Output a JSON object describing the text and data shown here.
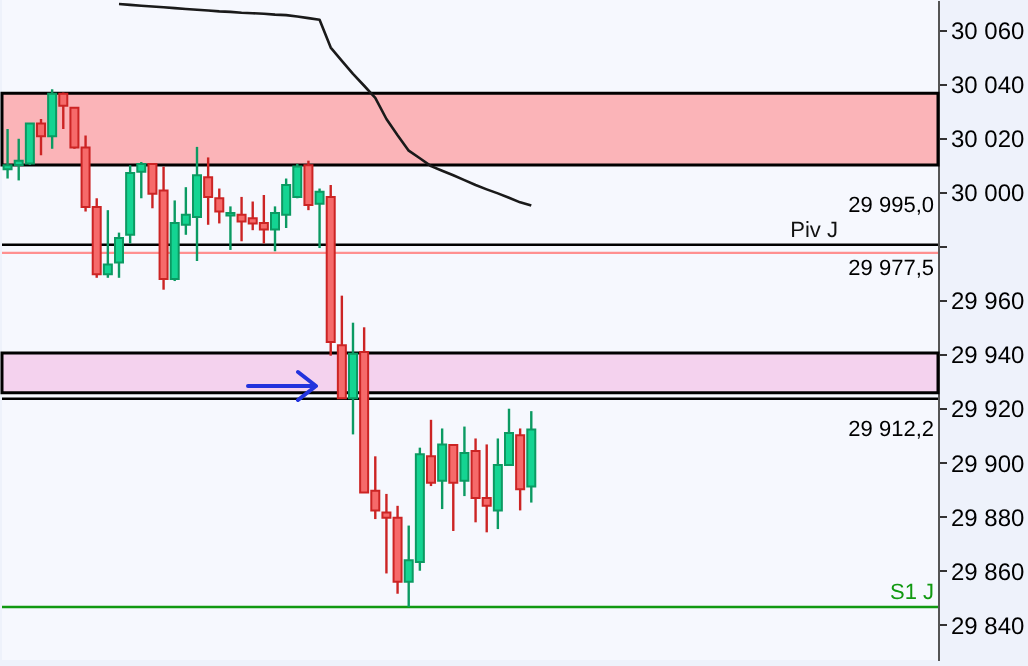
{
  "chart_data": {
    "type": "candlestick",
    "categories": [
      null,
      null,
      null,
      null,
      null,
      null,
      null,
      null,
      null,
      null,
      null,
      null,
      null,
      null,
      null,
      null,
      null,
      null,
      null,
      null,
      null,
      null,
      null,
      null,
      null,
      null,
      null,
      null,
      null,
      null,
      null,
      null,
      null,
      null,
      null,
      null,
      null,
      null,
      null,
      null,
      null,
      null,
      null,
      null,
      null,
      null,
      null,
      null,
      null,
      null,
      null,
      null,
      null,
      null,
      null,
      null,
      null,
      null,
      null,
      null,
      null,
      null,
      null,
      null,
      null,
      null,
      null,
      null,
      null,
      null,
      null,
      null,
      null,
      null,
      null,
      null,
      null,
      null,
      null,
      null,
      null,
      null,
      null,
      null
    ],
    "ohlc": [
      [
        30008.4,
        30023.3,
        30005,
        30009.9
      ],
      [
        30010,
        30019.7,
        30004.3,
        30011.6
      ],
      [
        30010.6,
        30025.5,
        30010,
        30025.3
      ],
      [
        30025.3,
        30027,
        30013.6,
        30020.6
      ],
      [
        30020.6,
        30038,
        30016,
        30036.3
      ],
      [
        30036.3,
        30036.8,
        30023.3,
        30031.9
      ],
      [
        30031.2,
        30031.2,
        30016,
        30016.5
      ],
      [
        30016.5,
        30020.9,
        29992.8,
        29994.5
      ],
      [
        29994.5,
        29997.7,
        29968.3,
        29969.6
      ],
      [
        29969.6,
        29993.3,
        29968.3,
        29973.2
      ],
      [
        29974,
        29985,
        29968.3,
        29983
      ],
      [
        29984.2,
        30009.9,
        29981,
        30007
      ],
      [
        30007.5,
        30011.1,
        29997.7,
        30010.4
      ],
      [
        30010.4,
        30010.4,
        29994,
        29999.4
      ],
      [
        30000.6,
        30009.4,
        29963.9,
        29967.9
      ],
      [
        29967.9,
        29996.9,
        29967.1,
        29988.6
      ],
      [
        29987.9,
        30001.8,
        29984.2,
        29991.6
      ],
      [
        29990.8,
        30016.7,
        29974.5,
        30006.2
      ],
      [
        30005.5,
        30012.8,
        29987.9,
        29998.2
      ],
      [
        29997.7,
        30001.3,
        29988.4,
        29992.8
      ],
      [
        29991.3,
        29994.7,
        29978.6,
        29992.3
      ],
      [
        29991.6,
        29998.2,
        29981.8,
        29989.1
      ],
      [
        29990.3,
        29996.5,
        29985.9,
        29988.4
      ],
      [
        29988.6,
        29998.9,
        29981,
        29986.2
      ],
      [
        29986.2,
        29994.7,
        29978.1,
        29992.3
      ],
      [
        29991.6,
        30005,
        29986.7,
        30002.6
      ],
      [
        29998.2,
        30010.4,
        29997.7,
        30009.4
      ],
      [
        30009.9,
        30011.6,
        29993.3,
        29995.2
      ],
      [
        29995.7,
        30001.3,
        29979.3,
        30000.1
      ],
      [
        29998.2,
        30002.6,
        29939.5,
        29944.6
      ],
      [
        29943.4,
        29961.7,
        29923.8,
        29923.8
      ],
      [
        29923.8,
        29951.7,
        29910.4,
        29940.2
      ],
      [
        29940.9,
        29950,
        29888.9,
        29888.9
      ],
      [
        29889.6,
        29902.3,
        29879.1,
        29882.3
      ],
      [
        29881.5,
        29888.4,
        29859,
        29879.6
      ],
      [
        29879.6,
        29884,
        29851.5,
        29855.9
      ],
      [
        29855.9,
        29876.7,
        29846.6,
        29863.9
      ],
      [
        29863.2,
        29905.5,
        29860,
        29903.1
      ],
      [
        29902.3,
        29915.8,
        29891.3,
        29892.5
      ],
      [
        29893.3,
        29912.6,
        29882.8,
        29906.7
      ],
      [
        29906.5,
        29906.5,
        29874.7,
        29892.5
      ],
      [
        29893.3,
        29913.3,
        29887.6,
        29903.5
      ],
      [
        29904.3,
        29908.9,
        29877.9,
        29886.9
      ],
      [
        29886.9,
        29906.7,
        29874.2,
        29884
      ],
      [
        29882.3,
        29908.9,
        29875.4,
        29899.1
      ],
      [
        29899.1,
        29919.9,
        29899,
        29910.9
      ],
      [
        29910.1,
        29912.6,
        29882.3,
        29890.1
      ],
      [
        29891.1,
        29919,
        29885.2,
        29912.2
      ],
      null,
      null,
      null,
      null,
      null,
      null,
      null,
      null,
      null,
      null,
      null,
      null,
      null,
      null,
      null,
      null,
      null,
      null,
      null,
      null,
      null,
      null,
      null,
      null,
      null,
      null,
      null,
      null,
      null,
      null,
      null,
      null,
      null,
      null,
      null,
      null
    ],
    "series": [
      {
        "type": "line",
        "color": "#1a1a1a",
        "values": [
          null,
          null,
          null,
          null,
          null,
          null,
          null,
          null,
          null,
          null,
          30069.5,
          30069.2,
          30068.9,
          30068.6,
          30068.3,
          30068,
          30067.7,
          30067.4,
          30067.1,
          30066.8,
          30066.6,
          30066.3,
          30066.1,
          30065.9,
          30065.6,
          30065.4,
          30064.9,
          30064.3,
          30063.7,
          30053.4,
          30048.5,
          30043.7,
          30039.3,
          30034.8,
          30027,
          30021,
          30015.3,
          30012.5,
          30009.6,
          30007.9,
          30006.2,
          30004.4,
          30002.6,
          30001,
          29999.5,
          29997.9,
          29996.2,
          29995,
          null,
          null,
          null,
          null,
          null,
          null,
          null,
          null,
          null,
          null,
          null,
          null,
          null,
          null,
          null,
          null,
          null,
          null,
          null,
          null,
          null,
          null,
          null,
          null,
          null,
          null,
          null,
          null,
          null,
          null,
          null,
          null,
          null,
          null,
          null,
          null
        ]
      }
    ],
    "ylim": [
      29827,
      30071
    ],
    "yticks": [
      {
        "value": 30060,
        "label": "30 060"
      },
      {
        "value": 30040,
        "label": "30 040"
      },
      {
        "value": 30020,
        "label": "30 020"
      },
      {
        "value": 30000,
        "label": "30 000"
      },
      {
        "value": 29980,
        "label": null
      },
      {
        "value": 29960,
        "label": "29 960"
      },
      {
        "value": 29940,
        "label": "29 940"
      },
      {
        "value": 29920,
        "label": "29 920"
      },
      {
        "value": 29900,
        "label": "29 900"
      },
      {
        "value": 29880,
        "label": "29 880"
      },
      {
        "value": 29860,
        "label": "29 860"
      },
      {
        "value": 29840,
        "label": "29 840"
      }
    ],
    "bands": [
      {
        "axis": "y",
        "from": 30010,
        "to": 30036.5,
        "color": "#fbb4b8"
      },
      {
        "axis": "y",
        "from": 29925.8,
        "to": 29940.5,
        "color": "#f4d2ee"
      }
    ],
    "ref_lines": [
      {
        "axis": "y",
        "value": 29980.5,
        "label": "Piv J",
        "color": "#000000"
      },
      {
        "axis": "y",
        "value": 29977.5,
        "label": "29 977,5",
        "color": "#ff9090"
      },
      {
        "axis": "y",
        "value": 29923.6,
        "color": "#000000"
      },
      {
        "axis": "y",
        "value": 29846.6,
        "label": "S1 J",
        "color": "#119911"
      }
    ],
    "annotations": [
      "29 995,0",
      "29 912,2"
    ],
    "grid": false
  }
}
